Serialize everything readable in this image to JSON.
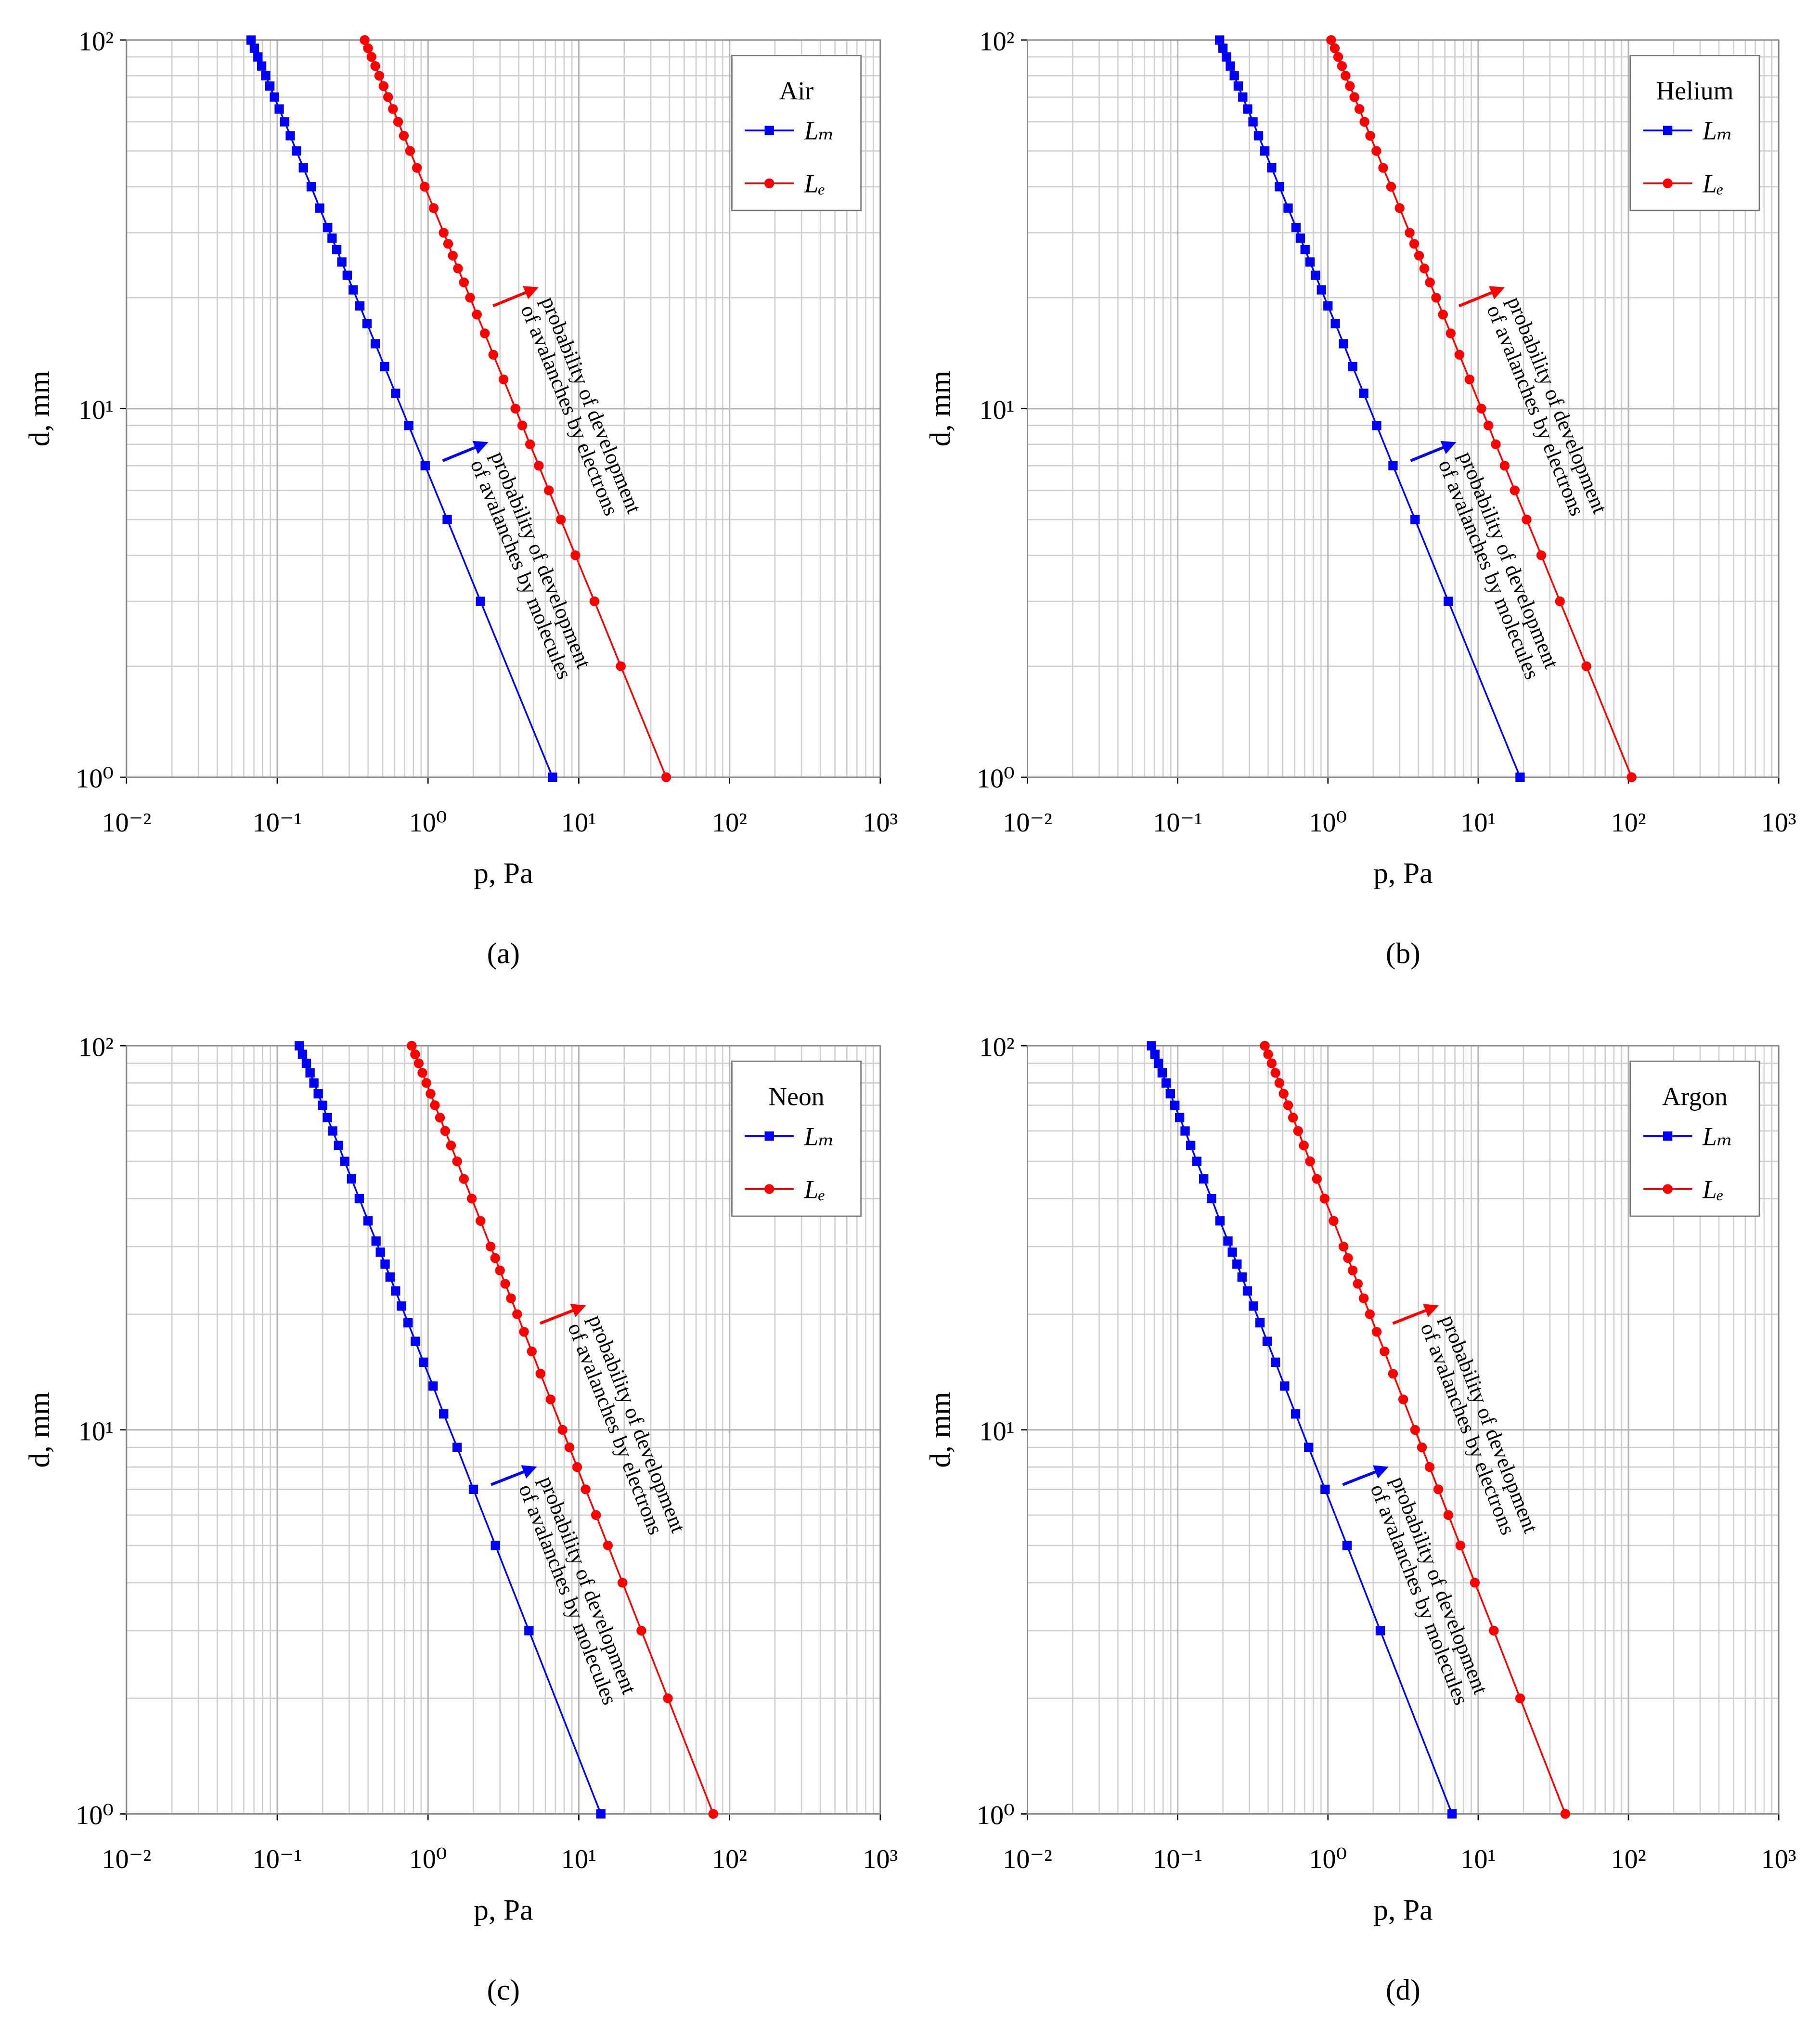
{
  "chart_data": [
    {
      "type": "line",
      "caption": "(a)",
      "xlabel": "p, Pa",
      "ylabel": "d, mm",
      "log_x": true,
      "log_y": true,
      "grid": true,
      "minor_grid": true,
      "xlim": [
        0.01,
        1000
      ],
      "ylim": [
        1,
        100
      ],
      "xticks": [
        {
          "value": 0.01,
          "label": "10⁻²"
        },
        {
          "value": 0.1,
          "label": "10⁻¹"
        },
        {
          "value": 1,
          "label": "10⁰"
        },
        {
          "value": 10,
          "label": "10¹"
        },
        {
          "value": 100,
          "label": "10²"
        },
        {
          "value": 1000,
          "label": "10³"
        }
      ],
      "yticks": [
        {
          "value": 1,
          "label": "10⁰"
        },
        {
          "value": 10,
          "label": "10¹"
        },
        {
          "value": 100,
          "label": "10²"
        }
      ],
      "legend_title": "Air",
      "legend": "upper right",
      "series": [
        {
          "name": "Lₘ",
          "color": "#0000ff",
          "marker": "square",
          "x": [
            6.7,
            2.23,
            1.34,
            0.957,
            0.744,
            0.609,
            0.515,
            0.447,
            0.394,
            0.353,
            0.319,
            0.291,
            0.268,
            0.248,
            0.231,
            0.216,
            0.191,
            0.168,
            0.149,
            0.134,
            0.122,
            0.112,
            0.103,
            0.0957,
            0.0893,
            0.0838,
            0.0788,
            0.0744,
            0.0705,
            0.067
          ],
          "values": [
            1,
            3,
            5,
            7,
            9,
            11,
            13,
            15,
            17,
            19,
            21,
            23,
            25,
            27,
            29,
            31,
            35,
            40,
            45,
            50,
            55,
            60,
            65,
            70,
            75,
            80,
            85,
            90,
            95,
            100
          ]
        },
        {
          "name": "Lₑ",
          "color": "#ff0000",
          "marker": "circle",
          "x": [
            38,
            19,
            12.7,
            9.5,
            7.6,
            6.33,
            5.43,
            4.75,
            4.22,
            3.8,
            3.17,
            2.71,
            2.38,
            2.11,
            1.9,
            1.73,
            1.58,
            1.46,
            1.36,
            1.27,
            1.09,
            0.95,
            0.844,
            0.76,
            0.691,
            0.633,
            0.585,
            0.543,
            0.507,
            0.475,
            0.447,
            0.422,
            0.4,
            0.38
          ],
          "values": [
            1,
            2,
            3,
            4,
            5,
            6,
            7,
            8,
            9,
            10,
            12,
            14,
            16,
            18,
            20,
            22,
            24,
            26,
            28,
            30,
            35,
            40,
            45,
            50,
            55,
            60,
            65,
            70,
            75,
            80,
            85,
            90,
            95,
            100
          ]
        }
      ],
      "annotations": [
        {
          "lines": [
            "probability of development",
            "of avalanches by molecules"
          ],
          "color": "#0000ff"
        },
        {
          "lines": [
            "probability of development",
            "of avalanches by electrons"
          ],
          "color": "#ff0000"
        }
      ]
    },
    {
      "type": "line",
      "caption": "(b)",
      "xlabel": "p, Pa",
      "ylabel": "d, mm",
      "log_x": true,
      "log_y": true,
      "grid": true,
      "minor_grid": true,
      "xlim": [
        0.01,
        1000
      ],
      "ylim": [
        1,
        100
      ],
      "xticks": [
        {
          "value": 0.01,
          "label": "10⁻²"
        },
        {
          "value": 0.1,
          "label": "10⁻¹"
        },
        {
          "value": 1,
          "label": "10⁰"
        },
        {
          "value": 10,
          "label": "10¹"
        },
        {
          "value": 100,
          "label": "10²"
        },
        {
          "value": 1000,
          "label": "10³"
        }
      ],
      "yticks": [
        {
          "value": 1,
          "label": "10⁰"
        },
        {
          "value": 10,
          "label": "10¹"
        },
        {
          "value": 100,
          "label": "10²"
        }
      ],
      "legend_title": "Helium",
      "legend": "upper right",
      "series": [
        {
          "name": "Lₘ",
          "color": "#0000ff",
          "marker": "square",
          "x": [
            19,
            6.33,
            3.8,
            2.71,
            2.11,
            1.73,
            1.46,
            1.27,
            1.12,
            1,
            0.905,
            0.826,
            0.76,
            0.704,
            0.655,
            0.613,
            0.543,
            0.475,
            0.422,
            0.38,
            0.345,
            0.317,
            0.292,
            0.271,
            0.253,
            0.238,
            0.224,
            0.211,
            0.2,
            0.19
          ],
          "values": [
            1,
            3,
            5,
            7,
            9,
            11,
            13,
            15,
            17,
            19,
            21,
            23,
            25,
            27,
            29,
            31,
            35,
            40,
            45,
            50,
            55,
            60,
            65,
            70,
            75,
            80,
            85,
            90,
            95,
            100
          ]
        },
        {
          "name": "Lₑ",
          "color": "#ff0000",
          "marker": "circle",
          "x": [
            105,
            52.5,
            35,
            26.3,
            21,
            17.5,
            15,
            13.1,
            11.7,
            10.5,
            8.75,
            7.5,
            6.56,
            5.83,
            5.25,
            4.77,
            4.38,
            4.04,
            3.75,
            3.5,
            3,
            2.63,
            2.33,
            2.1,
            1.91,
            1.75,
            1.62,
            1.5,
            1.4,
            1.31,
            1.24,
            1.17,
            1.11,
            1.05
          ],
          "values": [
            1,
            2,
            3,
            4,
            5,
            6,
            7,
            8,
            9,
            10,
            12,
            14,
            16,
            18,
            20,
            22,
            24,
            26,
            28,
            30,
            35,
            40,
            45,
            50,
            55,
            60,
            65,
            70,
            75,
            80,
            85,
            90,
            95,
            100
          ]
        }
      ],
      "annotations": [
        {
          "lines": [
            "probability of development",
            "of avalanches by molecules"
          ],
          "color": "#0000ff"
        },
        {
          "lines": [
            "probability of development",
            "of avalanches by electrons"
          ],
          "color": "#ff0000"
        }
      ]
    },
    {
      "type": "line",
      "caption": "(c)",
      "xlabel": "p, Pa",
      "ylabel": "d, mm",
      "log_x": true,
      "log_y": true,
      "grid": true,
      "minor_grid": true,
      "xlim": [
        0.01,
        1000
      ],
      "ylim": [
        1,
        100
      ],
      "xticks": [
        {
          "value": 0.01,
          "label": "10⁻²"
        },
        {
          "value": 0.1,
          "label": "10⁻¹"
        },
        {
          "value": 1,
          "label": "10⁰"
        },
        {
          "value": 10,
          "label": "10¹"
        },
        {
          "value": 100,
          "label": "10²"
        },
        {
          "value": 1000,
          "label": "10³"
        }
      ],
      "yticks": [
        {
          "value": 1,
          "label": "10⁰"
        },
        {
          "value": 10,
          "label": "10¹"
        },
        {
          "value": 100,
          "label": "10²"
        }
      ],
      "legend_title": "Neon",
      "legend": "upper right",
      "series": [
        {
          "name": "Lₘ",
          "color": "#0000ff",
          "marker": "square",
          "x": [
            14,
            4.67,
            2.8,
            2,
            1.56,
            1.27,
            1.08,
            0.933,
            0.824,
            0.737,
            0.667,
            0.609,
            0.56,
            0.519,
            0.483,
            0.452,
            0.4,
            0.35,
            0.311,
            0.28,
            0.255,
            0.233,
            0.215,
            0.2,
            0.187,
            0.175,
            0.165,
            0.156,
            0.147,
            0.14
          ],
          "values": [
            1,
            3,
            5,
            7,
            9,
            11,
            13,
            15,
            17,
            19,
            21,
            23,
            25,
            27,
            29,
            31,
            35,
            40,
            45,
            50,
            55,
            60,
            65,
            70,
            75,
            80,
            85,
            90,
            95,
            100
          ]
        },
        {
          "name": "Lₑ",
          "color": "#ff0000",
          "marker": "circle",
          "x": [
            78,
            39,
            26,
            19.5,
            15.6,
            13,
            11.1,
            9.75,
            8.67,
            7.8,
            6.5,
            5.57,
            4.88,
            4.33,
            3.9,
            3.55,
            3.25,
            3,
            2.79,
            2.6,
            2.23,
            1.95,
            1.73,
            1.56,
            1.42,
            1.3,
            1.2,
            1.11,
            1.04,
            0.975,
            0.918,
            0.867,
            0.821,
            0.78
          ],
          "values": [
            1,
            2,
            3,
            4,
            5,
            6,
            7,
            8,
            9,
            10,
            12,
            14,
            16,
            18,
            20,
            22,
            24,
            26,
            28,
            30,
            35,
            40,
            45,
            50,
            55,
            60,
            65,
            70,
            75,
            80,
            85,
            90,
            95,
            100
          ]
        }
      ],
      "annotations": [
        {
          "lines": [
            "probability of development",
            "of avalanches by molecules"
          ],
          "color": "#0000ff"
        },
        {
          "lines": [
            "probability of development",
            "of avalanches by electrons"
          ],
          "color": "#ff0000"
        }
      ]
    },
    {
      "type": "line",
      "caption": "(d)",
      "xlabel": "p, Pa",
      "ylabel": "d, mm",
      "log_x": true,
      "log_y": true,
      "grid": true,
      "minor_grid": true,
      "xlim": [
        0.01,
        1000
      ],
      "ylim": [
        1,
        100
      ],
      "xticks": [
        {
          "value": 0.01,
          "label": "10⁻²"
        },
        {
          "value": 0.1,
          "label": "10⁻¹"
        },
        {
          "value": 1,
          "label": "10⁰"
        },
        {
          "value": 10,
          "label": "10¹"
        },
        {
          "value": 100,
          "label": "10²"
        },
        {
          "value": 1000,
          "label": "10³"
        }
      ],
      "yticks": [
        {
          "value": 1,
          "label": "10⁰"
        },
        {
          "value": 10,
          "label": "10¹"
        },
        {
          "value": 100,
          "label": "10²"
        }
      ],
      "legend_title": "Argon",
      "legend": "upper right",
      "series": [
        {
          "name": "Lₘ",
          "color": "#0000ff",
          "marker": "square",
          "x": [
            6.7,
            2.23,
            1.34,
            0.957,
            0.744,
            0.609,
            0.515,
            0.447,
            0.394,
            0.353,
            0.319,
            0.291,
            0.268,
            0.248,
            0.231,
            0.216,
            0.191,
            0.168,
            0.149,
            0.134,
            0.122,
            0.112,
            0.103,
            0.0957,
            0.0893,
            0.0838,
            0.0788,
            0.0744,
            0.0705,
            0.067
          ],
          "values": [
            1,
            3,
            5,
            7,
            9,
            11,
            13,
            15,
            17,
            19,
            21,
            23,
            25,
            27,
            29,
            31,
            35,
            40,
            45,
            50,
            55,
            60,
            65,
            70,
            75,
            80,
            85,
            90,
            95,
            100
          ]
        },
        {
          "name": "Lₑ",
          "color": "#ff0000",
          "marker": "circle",
          "x": [
            38,
            19,
            12.7,
            9.5,
            7.6,
            6.33,
            5.43,
            4.75,
            4.22,
            3.8,
            3.17,
            2.71,
            2.38,
            2.11,
            1.9,
            1.73,
            1.58,
            1.46,
            1.36,
            1.27,
            1.09,
            0.95,
            0.844,
            0.76,
            0.691,
            0.633,
            0.585,
            0.543,
            0.507,
            0.475,
            0.447,
            0.422,
            0.4,
            0.38
          ],
          "values": [
            1,
            2,
            3,
            4,
            5,
            6,
            7,
            8,
            9,
            10,
            12,
            14,
            16,
            18,
            20,
            22,
            24,
            26,
            28,
            30,
            35,
            40,
            45,
            50,
            55,
            60,
            65,
            70,
            75,
            80,
            85,
            90,
            95,
            100
          ]
        }
      ],
      "annotations": [
        {
          "lines": [
            "probability of development",
            "of avalanches by molecules"
          ],
          "color": "#0000ff"
        },
        {
          "lines": [
            "probability of development",
            "of avalanches by electrons"
          ],
          "color": "#ff0000"
        }
      ]
    }
  ]
}
